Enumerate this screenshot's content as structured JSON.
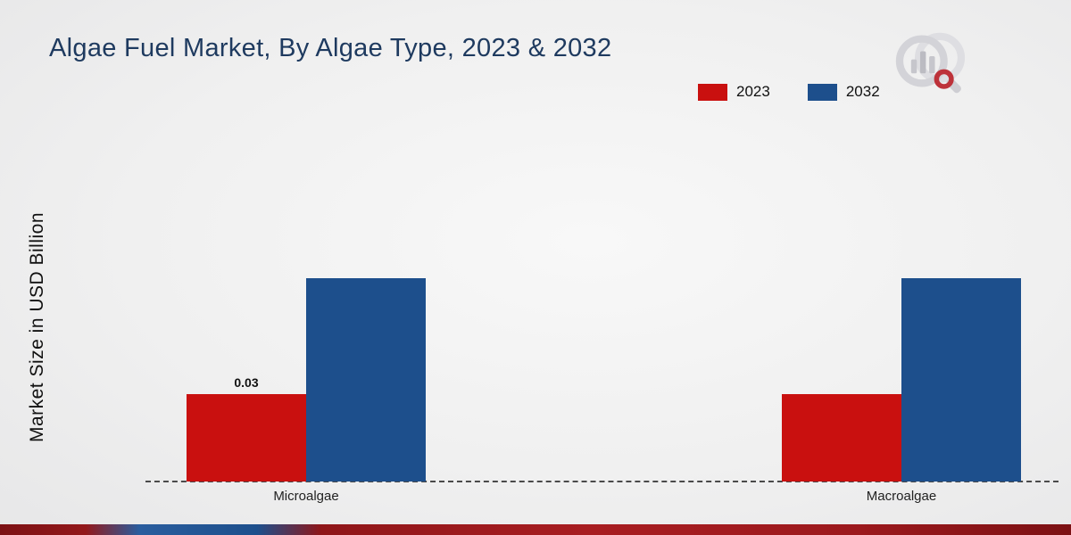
{
  "title": "Algae Fuel Market, By Algae Type, 2023 & 2032",
  "chart_data": {
    "type": "bar",
    "categories": [
      "Microalgae",
      "Macroalgae"
    ],
    "series": [
      {
        "name": "2023",
        "color": "#c9100f",
        "values": [
          0.03,
          0.03
        ]
      },
      {
        "name": "2032",
        "color": "#1d4f8c",
        "values": [
          0.07,
          0.07
        ]
      }
    ],
    "title": "Algae Fuel Market, By Algae Type, 2023 & 2032",
    "xlabel": "",
    "ylabel": "Market Size in USD Billion",
    "ylim": [
      0,
      0.08
    ],
    "grid": false,
    "legend_position": "top-right",
    "annotations": [
      {
        "text": "0.03",
        "category": "Microalgae",
        "series": "2023"
      }
    ]
  },
  "legend": {
    "items": [
      {
        "label": "2023",
        "color": "#c9100f"
      },
      {
        "label": "2032",
        "color": "#1d4f8c"
      }
    ]
  },
  "watermark": {
    "name": "market-research-magnifier-logo"
  }
}
